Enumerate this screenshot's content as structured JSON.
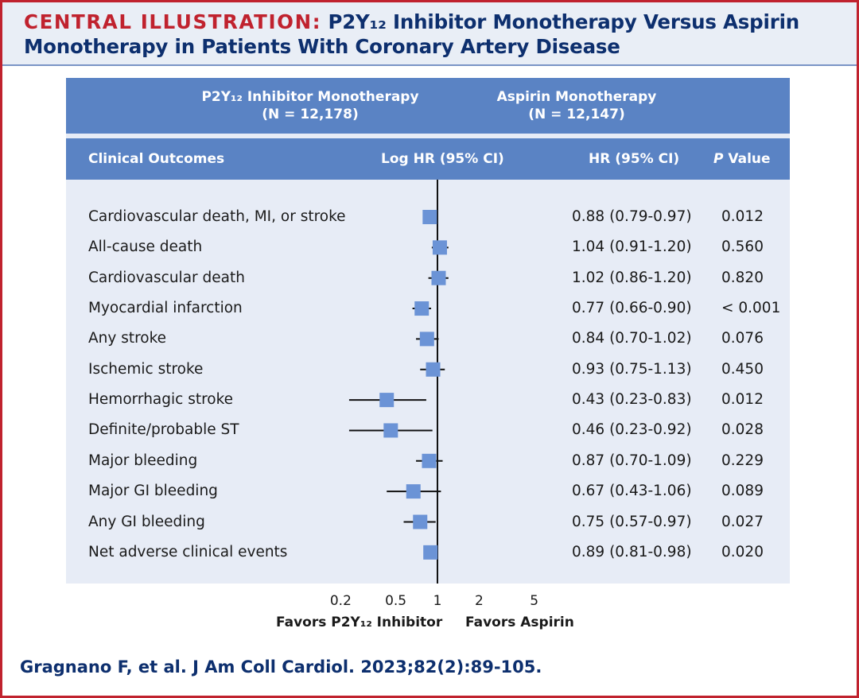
{
  "title": {
    "lead": "CENTRAL ILLUSTRATION:",
    "rest": "P2Y₁₂ Inhibitor Monotherapy Versus Aspirin Monotherapy in Patients With Coronary Artery Disease"
  },
  "groups": [
    {
      "name": "P2Y₁₂ Inhibitor Monotherapy",
      "n": "(N = 12,178)"
    },
    {
      "name": "Aspirin Monotherapy",
      "n": "(N = 12,147)"
    }
  ],
  "columns": {
    "outcome": "Clinical Outcomes",
    "loghr": "Log HR (95% CI)",
    "hr": "HR (95% CI)",
    "p_italic": "P",
    "p_rest": " Value"
  },
  "chart_data": {
    "type": "forest",
    "x_scale": "log",
    "xlim": [
      0.2,
      5
    ],
    "x_ticks": [
      {
        "value": 0.2,
        "label": "0.2"
      },
      {
        "value": 0.5,
        "label": "0.5"
      },
      {
        "value": 1,
        "label": "1"
      },
      {
        "value": 2,
        "label": "2"
      },
      {
        "value": 5,
        "label": "5"
      }
    ],
    "reference_line": 1,
    "favors_left": "Favors P2Y₁₂ Inhibitor",
    "favors_right": "Favors Aspirin",
    "rows": [
      {
        "outcome": "Cardiovascular death, MI, or stroke",
        "hr": 0.88,
        "lo": 0.79,
        "hi": 0.97,
        "hr_text": "0.88 (0.79-0.97)",
        "p": "0.012"
      },
      {
        "outcome": "All-cause death",
        "hr": 1.04,
        "lo": 0.91,
        "hi": 1.2,
        "hr_text": "1.04 (0.91-1.20)",
        "p": "0.560"
      },
      {
        "outcome": "Cardiovascular death",
        "hr": 1.02,
        "lo": 0.86,
        "hi": 1.2,
        "hr_text": "1.02 (0.86-1.20)",
        "p": "0.820"
      },
      {
        "outcome": "Myocardial infarction",
        "hr": 0.77,
        "lo": 0.66,
        "hi": 0.9,
        "hr_text": "0.77 (0.66-0.90)",
        "p": "< 0.001"
      },
      {
        "outcome": "Any stroke",
        "hr": 0.84,
        "lo": 0.7,
        "hi": 1.02,
        "hr_text": "0.84 (0.70-1.02)",
        "p": "0.076"
      },
      {
        "outcome": "Ischemic stroke",
        "hr": 0.93,
        "lo": 0.75,
        "hi": 1.13,
        "hr_text": "0.93 (0.75-1.13)",
        "p": "0.450"
      },
      {
        "outcome": "Hemorrhagic stroke",
        "hr": 0.43,
        "lo": 0.23,
        "hi": 0.83,
        "hr_text": "0.43 (0.23-0.83)",
        "p": "0.012"
      },
      {
        "outcome": "Definite/probable ST",
        "hr": 0.46,
        "lo": 0.23,
        "hi": 0.92,
        "hr_text": "0.46 (0.23-0.92)",
        "p": "0.028"
      },
      {
        "outcome": "Major bleeding",
        "hr": 0.87,
        "lo": 0.7,
        "hi": 1.09,
        "hr_text": "0.87 (0.70-1.09)",
        "p": "0.229"
      },
      {
        "outcome": "Major GI bleeding",
        "hr": 0.67,
        "lo": 0.43,
        "hi": 1.06,
        "hr_text": "0.67 (0.43-1.06)",
        "p": "0.089"
      },
      {
        "outcome": "Any GI bleeding",
        "hr": 0.75,
        "lo": 0.57,
        "hi": 0.97,
        "hr_text": "0.75 (0.57-0.97)",
        "p": "0.027"
      },
      {
        "outcome": "Net adverse clinical events",
        "hr": 0.89,
        "lo": 0.81,
        "hi": 0.98,
        "hr_text": "0.89 (0.81-0.98)",
        "p": "0.020"
      }
    ]
  },
  "citation": "Gragnano F, et al. J Am Coll Cardiol. 2023;82(2):89-105.",
  "colors": {
    "marker": "#6b93d6",
    "header": "#5a83c4",
    "title_red": "#c0222e",
    "title_blue": "#0d2f6e",
    "panel": "#e7ecf6"
  }
}
